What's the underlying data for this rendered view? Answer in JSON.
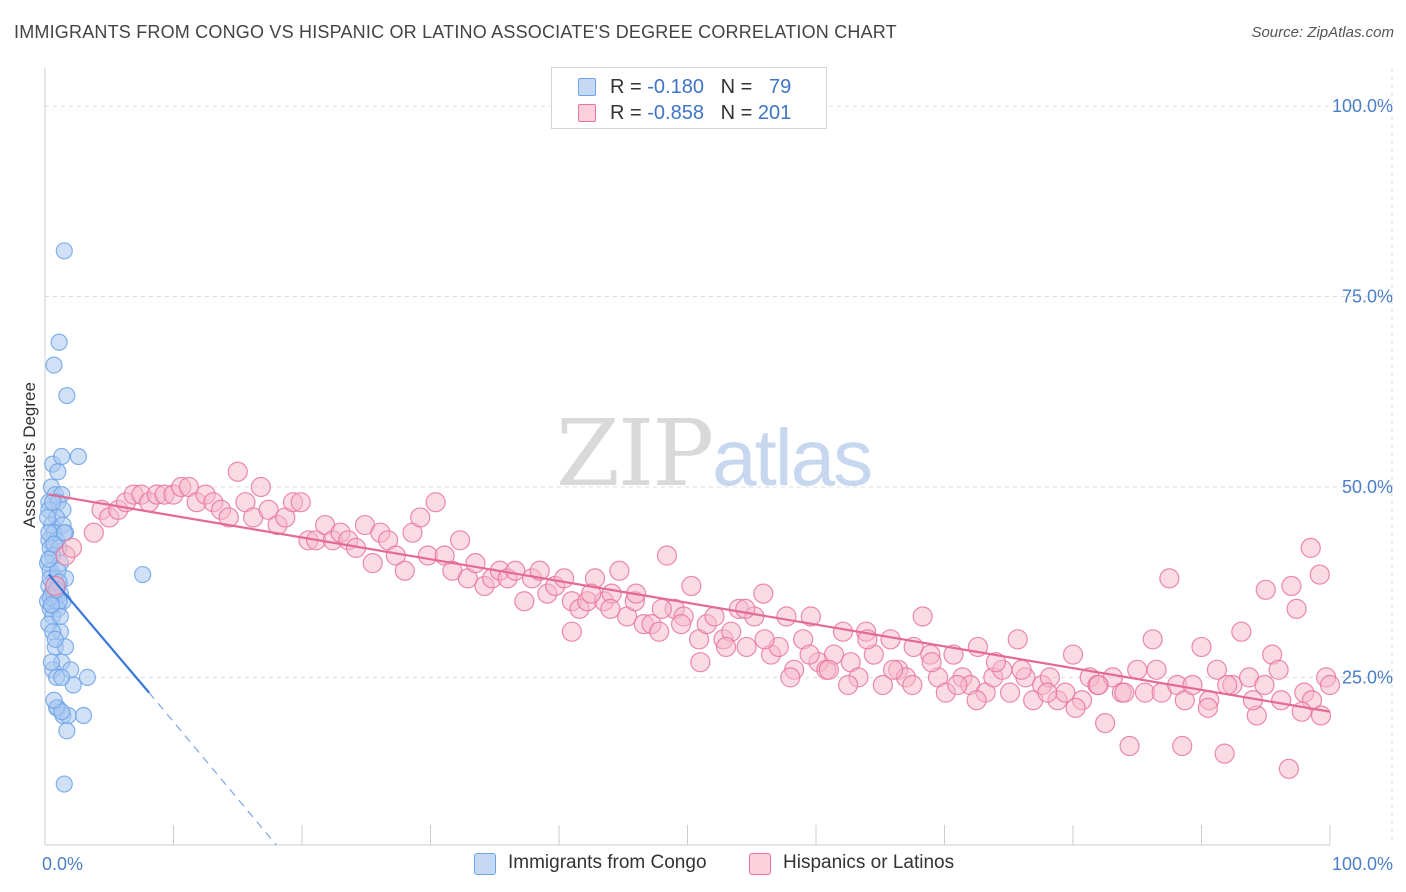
{
  "title": "IMMIGRANTS FROM CONGO VS HISPANIC OR LATINO ASSOCIATE'S DEGREE CORRELATION CHART",
  "source": "Source: ZipAtlas.com",
  "watermark": {
    "zip": "ZIP",
    "atlas": "atlas"
  },
  "legend_top": [
    {
      "r_label": "R =",
      "r_value": "-0.180",
      "n_label": "N =",
      "n_value": "79",
      "color": "#a9c8f0"
    },
    {
      "r_label": "R =",
      "r_value": "-0.858",
      "n_label": "N =",
      "n_value": "201",
      "color": "#f5b8ca"
    }
  ],
  "legend_bottom": [
    {
      "label": "Immigrants from Congo",
      "color": "#a9c8f0"
    },
    {
      "label": "Hispanics or Latinos",
      "color": "#f5b8ca"
    }
  ],
  "chart_data": {
    "type": "scatter",
    "title": "IMMIGRANTS FROM CONGO VS HISPANIC OR LATINO ASSOCIATE'S DEGREE CORRELATION CHART",
    "xlabel": "",
    "ylabel": "Associate's Degree",
    "xlim": [
      0,
      100
    ],
    "ylim": [
      3,
      105
    ],
    "x_ticks": [
      {
        "value": 0,
        "label": "0.0%"
      },
      {
        "value": 100,
        "label": "100.0%"
      }
    ],
    "y_ticks": [
      {
        "value": 25,
        "label": "25.0%"
      },
      {
        "value": 50,
        "label": "50.0%"
      },
      {
        "value": 75,
        "label": "75.0%"
      },
      {
        "value": 100,
        "label": "100.0%"
      }
    ],
    "grid": true,
    "legend_position": "top-center",
    "series": [
      {
        "name": "Immigrants from Congo",
        "color": "#6fa3e8",
        "fill": "#a9c8f0",
        "trend": {
          "x1": 0.3,
          "y1": 38.5,
          "x2": 8.1,
          "y2": 23.0,
          "dash_x2": 18.0,
          "dash_y2": 3.0
        },
        "points": [
          [
            1.5,
            81
          ],
          [
            1.1,
            69
          ],
          [
            0.7,
            66
          ],
          [
            1.7,
            62
          ],
          [
            2.6,
            54
          ],
          [
            0.6,
            53
          ],
          [
            1.3,
            54
          ],
          [
            1.0,
            52
          ],
          [
            0.5,
            50
          ],
          [
            0.8,
            49
          ],
          [
            1.3,
            49
          ],
          [
            0.3,
            48
          ],
          [
            1.0,
            48
          ],
          [
            1.4,
            47
          ],
          [
            0.3,
            47
          ],
          [
            0.9,
            46
          ],
          [
            0.5,
            45
          ],
          [
            1.4,
            45
          ],
          [
            0.7,
            44
          ],
          [
            1.6,
            44
          ],
          [
            0.3,
            43
          ],
          [
            0.9,
            43
          ],
          [
            0.4,
            42
          ],
          [
            1.1,
            42
          ],
          [
            0.6,
            41
          ],
          [
            0.2,
            40
          ],
          [
            1.2,
            40
          ],
          [
            0.4,
            39
          ],
          [
            0.8,
            38
          ],
          [
            1.6,
            38
          ],
          [
            0.3,
            37
          ],
          [
            1.0,
            37
          ],
          [
            0.5,
            36
          ],
          [
            1.2,
            36
          ],
          [
            0.2,
            35
          ],
          [
            0.8,
            35
          ],
          [
            1.4,
            35
          ],
          [
            0.4,
            34
          ],
          [
            1.0,
            34
          ],
          [
            0.6,
            33
          ],
          [
            0.3,
            32
          ],
          [
            1.2,
            31
          ],
          [
            0.6,
            31
          ],
          [
            0.8,
            29
          ],
          [
            1.6,
            29
          ],
          [
            1.3,
            27
          ],
          [
            0.6,
            26
          ],
          [
            2.0,
            26
          ],
          [
            0.9,
            25
          ],
          [
            2.2,
            24
          ],
          [
            3.3,
            25
          ],
          [
            1.0,
            21
          ],
          [
            1.4,
            20
          ],
          [
            1.8,
            20
          ],
          [
            3.0,
            20
          ],
          [
            1.7,
            18
          ],
          [
            1.5,
            11
          ],
          [
            7.6,
            38.5
          ],
          [
            0.4,
            38
          ],
          [
            0.7,
            36
          ],
          [
            1.1,
            35
          ],
          [
            0.5,
            27
          ],
          [
            0.9,
            21
          ],
          [
            1.3,
            20.5
          ],
          [
            0.3,
            44
          ],
          [
            0.6,
            48
          ],
          [
            1.0,
            39
          ],
          [
            0.4,
            35.5
          ],
          [
            1.2,
            33
          ],
          [
            0.8,
            30
          ],
          [
            0.2,
            46
          ],
          [
            1.5,
            44
          ],
          [
            0.7,
            42.5
          ],
          [
            0.3,
            40.5
          ],
          [
            1.1,
            37.5
          ],
          [
            0.9,
            36.5
          ],
          [
            0.5,
            34.5
          ],
          [
            1.3,
            25
          ],
          [
            0.7,
            22
          ]
        ]
      },
      {
        "name": "Hispanics or Latinos",
        "color": "#e8769c",
        "fill": "#f5b8ca",
        "trend": {
          "x1": 0.3,
          "y1": 49.0,
          "x2": 100.0,
          "y2": 20.5
        },
        "points": [
          [
            0.8,
            37
          ],
          [
            1.6,
            41
          ],
          [
            2.1,
            42
          ],
          [
            3.8,
            44
          ],
          [
            4.4,
            47
          ],
          [
            5.0,
            46
          ],
          [
            5.7,
            47
          ],
          [
            6.3,
            48
          ],
          [
            6.9,
            49
          ],
          [
            7.5,
            49
          ],
          [
            8.1,
            48
          ],
          [
            8.7,
            49
          ],
          [
            9.3,
            49
          ],
          [
            10.0,
            49
          ],
          [
            10.6,
            50
          ],
          [
            11.2,
            50
          ],
          [
            11.8,
            48
          ],
          [
            12.5,
            49
          ],
          [
            13.1,
            48
          ],
          [
            13.7,
            47
          ],
          [
            14.3,
            46
          ],
          [
            15.0,
            52
          ],
          [
            15.6,
            48
          ],
          [
            16.2,
            46
          ],
          [
            16.8,
            50
          ],
          [
            17.4,
            47
          ],
          [
            18.1,
            45
          ],
          [
            18.7,
            46
          ],
          [
            19.3,
            48
          ],
          [
            19.9,
            48
          ],
          [
            20.5,
            43
          ],
          [
            21.1,
            43
          ],
          [
            21.8,
            45
          ],
          [
            22.4,
            43
          ],
          [
            23.0,
            44
          ],
          [
            23.6,
            43
          ],
          [
            24.2,
            42
          ],
          [
            24.9,
            45
          ],
          [
            25.5,
            40
          ],
          [
            26.1,
            44
          ],
          [
            26.7,
            43
          ],
          [
            27.3,
            41
          ],
          [
            28.0,
            39
          ],
          [
            28.6,
            44
          ],
          [
            29.2,
            46
          ],
          [
            29.8,
            41
          ],
          [
            30.4,
            48
          ],
          [
            31.1,
            41
          ],
          [
            31.7,
            39
          ],
          [
            32.3,
            43
          ],
          [
            32.9,
            38
          ],
          [
            33.5,
            40
          ],
          [
            34.2,
            37
          ],
          [
            34.8,
            38
          ],
          [
            35.4,
            39
          ],
          [
            36.0,
            38
          ],
          [
            36.6,
            39
          ],
          [
            37.3,
            35
          ],
          [
            37.9,
            38
          ],
          [
            38.5,
            39
          ],
          [
            39.1,
            36
          ],
          [
            39.7,
            37
          ],
          [
            40.4,
            38
          ],
          [
            41.0,
            35
          ],
          [
            41.6,
            34
          ],
          [
            42.2,
            35
          ],
          [
            42.8,
            38
          ],
          [
            43.5,
            35
          ],
          [
            44.1,
            36
          ],
          [
            44.7,
            39
          ],
          [
            45.3,
            33
          ],
          [
            45.9,
            35
          ],
          [
            46.6,
            32
          ],
          [
            47.2,
            32
          ],
          [
            47.8,
            31
          ],
          [
            48.4,
            41
          ],
          [
            49.0,
            34
          ],
          [
            49.7,
            33
          ],
          [
            50.3,
            37
          ],
          [
            50.9,
            30
          ],
          [
            51.5,
            32
          ],
          [
            52.1,
            33
          ],
          [
            52.8,
            30
          ],
          [
            53.4,
            31
          ],
          [
            54.0,
            34
          ],
          [
            54.6,
            29
          ],
          [
            55.2,
            33
          ],
          [
            55.9,
            36
          ],
          [
            56.5,
            28
          ],
          [
            57.1,
            29
          ],
          [
            57.7,
            33
          ],
          [
            58.3,
            26
          ],
          [
            59.0,
            30
          ],
          [
            59.6,
            33
          ],
          [
            60.2,
            27
          ],
          [
            60.8,
            26
          ],
          [
            61.4,
            28
          ],
          [
            62.1,
            31
          ],
          [
            62.7,
            27
          ],
          [
            63.3,
            25
          ],
          [
            63.9,
            31
          ],
          [
            64.5,
            28
          ],
          [
            65.2,
            24
          ],
          [
            65.8,
            30
          ],
          [
            66.4,
            26
          ],
          [
            67.0,
            25
          ],
          [
            67.6,
            29
          ],
          [
            68.3,
            33
          ],
          [
            68.9,
            28
          ],
          [
            69.5,
            25
          ],
          [
            70.1,
            23
          ],
          [
            70.7,
            28
          ],
          [
            71.4,
            25
          ],
          [
            72.0,
            24
          ],
          [
            72.6,
            29
          ],
          [
            73.2,
            23
          ],
          [
            73.8,
            25
          ],
          [
            74.5,
            26
          ],
          [
            75.1,
            23
          ],
          [
            75.7,
            30
          ],
          [
            76.3,
            25
          ],
          [
            76.9,
            22
          ],
          [
            77.6,
            24
          ],
          [
            78.2,
            25
          ],
          [
            78.8,
            22
          ],
          [
            79.4,
            23
          ],
          [
            80.0,
            28
          ],
          [
            80.7,
            22
          ],
          [
            81.3,
            25
          ],
          [
            81.9,
            24
          ],
          [
            82.5,
            19
          ],
          [
            83.1,
            25
          ],
          [
            83.8,
            23
          ],
          [
            84.4,
            16
          ],
          [
            85.0,
            26
          ],
          [
            85.6,
            23
          ],
          [
            86.2,
            30
          ],
          [
            86.9,
            23
          ],
          [
            87.5,
            38
          ],
          [
            88.1,
            24
          ],
          [
            88.7,
            22
          ],
          [
            89.3,
            24
          ],
          [
            90.0,
            29
          ],
          [
            90.6,
            22
          ],
          [
            91.2,
            26
          ],
          [
            91.8,
            15
          ],
          [
            92.4,
            24
          ],
          [
            93.1,
            31
          ],
          [
            93.7,
            25
          ],
          [
            94.3,
            20
          ],
          [
            94.9,
            24
          ],
          [
            95.5,
            28
          ],
          [
            96.2,
            22
          ],
          [
            96.8,
            13
          ],
          [
            97.4,
            34
          ],
          [
            98.0,
            23
          ],
          [
            98.6,
            22
          ],
          [
            99.3,
            20
          ],
          [
            99.7,
            25
          ],
          [
            100.0,
            24
          ],
          [
            95.0,
            36.5
          ],
          [
            97.0,
            37
          ],
          [
            98.5,
            42
          ],
          [
            99.2,
            38.5
          ],
          [
            96.0,
            26
          ],
          [
            97.8,
            20.5
          ],
          [
            94.0,
            22
          ],
          [
            92.0,
            24
          ],
          [
            90.5,
            21
          ],
          [
            88.5,
            16
          ],
          [
            86.5,
            26
          ],
          [
            84.0,
            23
          ],
          [
            82.0,
            24
          ],
          [
            80.2,
            21
          ],
          [
            78.0,
            23
          ],
          [
            76.0,
            26
          ],
          [
            74.0,
            27
          ],
          [
            72.5,
            22
          ],
          [
            71.0,
            24
          ],
          [
            69.0,
            27
          ],
          [
            67.5,
            24
          ],
          [
            66.0,
            26
          ],
          [
            64.0,
            30
          ],
          [
            62.5,
            24
          ],
          [
            61.0,
            26
          ],
          [
            59.5,
            28
          ],
          [
            58.0,
            25
          ],
          [
            56.0,
            30
          ],
          [
            54.5,
            34
          ],
          [
            53.0,
            29
          ],
          [
            51.0,
            27
          ],
          [
            49.5,
            32
          ],
          [
            48.0,
            34
          ],
          [
            46.0,
            36
          ],
          [
            44.0,
            34
          ],
          [
            42.5,
            36
          ],
          [
            41.0,
            31
          ]
        ]
      }
    ]
  }
}
